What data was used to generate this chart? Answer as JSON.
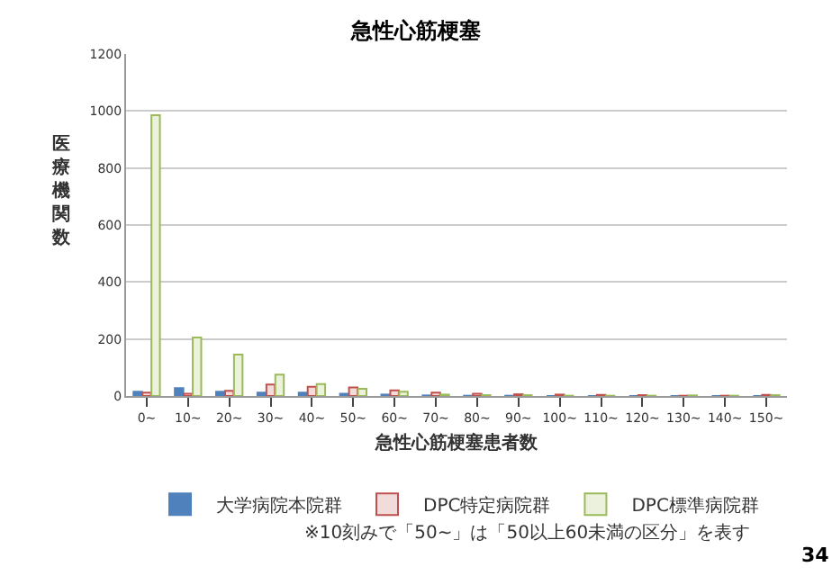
{
  "chart_data": {
    "type": "bar",
    "title": "急性心筋梗塞",
    "xlabel": "急性心筋梗塞患者数",
    "ylabel": "医療機関数",
    "categories": [
      "0~",
      "10~",
      "20~",
      "30~",
      "40~",
      "50~",
      "60~",
      "70~",
      "80~",
      "90~",
      "100~",
      "110~",
      "120~",
      "130~",
      "140~",
      "150~"
    ],
    "series": [
      {
        "name": "大学病院本院群",
        "color": "#4f81bd",
        "values": [
          15,
          28,
          15,
          12,
          12,
          8,
          5,
          2,
          1,
          1,
          0,
          0,
          0,
          0,
          0,
          0
        ]
      },
      {
        "name": "DPC特定病院群",
        "color": "#c0504d",
        "values": [
          12,
          8,
          18,
          40,
          32,
          30,
          20,
          12,
          8,
          6,
          5,
          4,
          3,
          1,
          1,
          4
        ]
      },
      {
        "name": "DPC標準病院群",
        "color": "#9bbb59",
        "values": [
          985,
          205,
          145,
          75,
          42,
          25,
          15,
          5,
          3,
          3,
          1,
          1,
          1,
          2,
          1,
          3
        ]
      }
    ],
    "ylim": [
      0,
      1200
    ],
    "yticks": [
      0,
      200,
      400,
      600,
      800,
      1000,
      1200
    ],
    "grid": "y",
    "legend": "bottom",
    "annotations": [
      "※10刻みで「50~」は「50以上60未満の区分」を表す",
      "34"
    ]
  }
}
